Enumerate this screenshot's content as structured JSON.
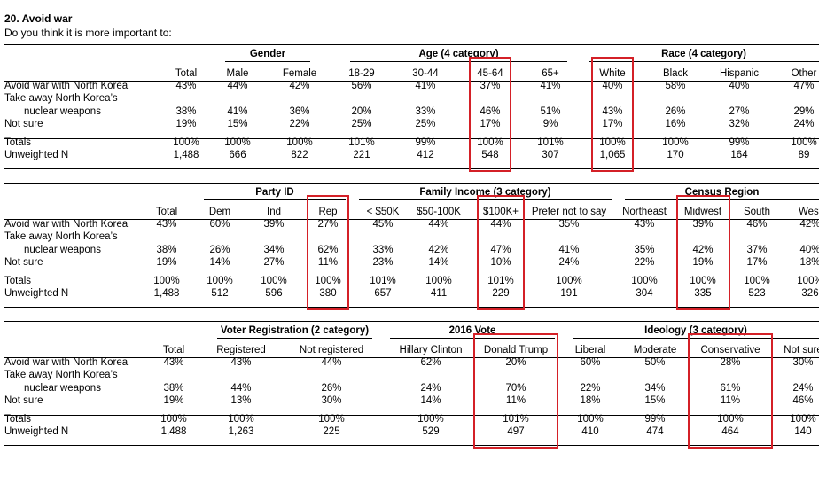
{
  "title": "20. Avoid war",
  "question": "Do you think it is more important to:",
  "row_labels": {
    "avoid": "Avoid war with North Korea",
    "take1": "Take away North Korea’s",
    "take2": "nuclear weapons",
    "notsure": "Not sure",
    "totals": "Totals",
    "unweighted": "Unweighted N"
  },
  "sections": [
    {
      "groups": [
        "Gender",
        "Age (4 category)",
        "Race (4 category)"
      ],
      "headers": [
        "Total",
        "Male",
        "Female",
        "18-29",
        "30-44",
        "45-64",
        "65+",
        "White",
        "Black",
        "Hispanic",
        "Other"
      ],
      "rows": [
        [
          "43%",
          "44%",
          "42%",
          "56%",
          "41%",
          "37%",
          "41%",
          "40%",
          "58%",
          "40%",
          "47%"
        ],
        [
          "38%",
          "41%",
          "36%",
          "20%",
          "33%",
          "46%",
          "51%",
          "43%",
          "26%",
          "27%",
          "29%"
        ],
        [
          "19%",
          "15%",
          "22%",
          "25%",
          "25%",
          "17%",
          "9%",
          "17%",
          "16%",
          "32%",
          "24%"
        ],
        [
          "100%",
          "100%",
          "100%",
          "101%",
          "99%",
          "100%",
          "101%",
          "100%",
          "100%",
          "99%",
          "100%"
        ],
        [
          "1,488",
          "666",
          "822",
          "221",
          "412",
          "548",
          "307",
          "1,065",
          "170",
          "164",
          "89"
        ]
      ]
    },
    {
      "groups": [
        "Party ID",
        "Family Income (3 category)",
        "Census Region"
      ],
      "headers": [
        "Total",
        "Dem",
        "Ind",
        "Rep",
        "< $50K",
        "$50-100K",
        "$100K+",
        "Prefer not to say",
        "Northeast",
        "Midwest",
        "South",
        "West"
      ],
      "rows": [
        [
          "43%",
          "60%",
          "39%",
          "27%",
          "45%",
          "44%",
          "44%",
          "35%",
          "43%",
          "39%",
          "46%",
          "42%"
        ],
        [
          "38%",
          "26%",
          "34%",
          "62%",
          "33%",
          "42%",
          "47%",
          "41%",
          "35%",
          "42%",
          "37%",
          "40%"
        ],
        [
          "19%",
          "14%",
          "27%",
          "11%",
          "23%",
          "14%",
          "10%",
          "24%",
          "22%",
          "19%",
          "17%",
          "18%"
        ],
        [
          "100%",
          "100%",
          "100%",
          "100%",
          "101%",
          "100%",
          "101%",
          "100%",
          "100%",
          "100%",
          "100%",
          "100%"
        ],
        [
          "1,488",
          "512",
          "596",
          "380",
          "657",
          "411",
          "229",
          "191",
          "304",
          "335",
          "523",
          "326"
        ]
      ]
    },
    {
      "groups": [
        "Voter Registration (2 category)",
        "2016 Vote",
        "Ideology (3 category)"
      ],
      "headers": [
        "Total",
        "Registered",
        "Not registered",
        "Hillary Clinton",
        "Donald Trump",
        "Liberal",
        "Moderate",
        "Conservative",
        "Not sure"
      ],
      "rows": [
        [
          "43%",
          "43%",
          "44%",
          "62%",
          "20%",
          "60%",
          "50%",
          "28%",
          "30%"
        ],
        [
          "38%",
          "44%",
          "26%",
          "24%",
          "70%",
          "22%",
          "34%",
          "61%",
          "24%"
        ],
        [
          "19%",
          "13%",
          "30%",
          "14%",
          "11%",
          "18%",
          "15%",
          "11%",
          "46%"
        ],
        [
          "100%",
          "100%",
          "100%",
          "100%",
          "101%",
          "100%",
          "99%",
          "100%",
          "100%"
        ],
        [
          "1,488",
          "1,263",
          "225",
          "529",
          "497",
          "410",
          "474",
          "464",
          "140"
        ]
      ]
    }
  ]
}
